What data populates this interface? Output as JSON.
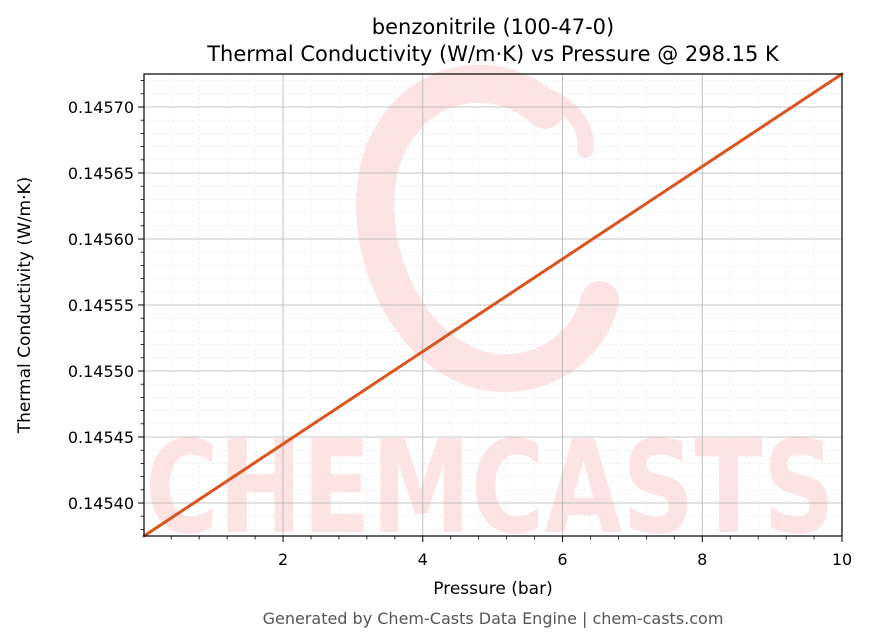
{
  "chart_data": {
    "type": "line",
    "title": "benzonitrile (100-47-0)",
    "subtitle": "Thermal Conductivity (W/m·K) vs Pressure @ 298.15 K",
    "xlabel": "Pressure (bar)",
    "ylabel": "Thermal Conductivity (W/m·K)",
    "xlim": [
      0.01,
      10
    ],
    "ylim": [
      0.145375,
      0.145725
    ],
    "x_ticks": [
      2,
      4,
      6,
      8,
      10
    ],
    "x_tick_labels": [
      "2",
      "4",
      "6",
      "8",
      "10"
    ],
    "y_ticks": [
      0.1454,
      0.14545,
      0.1455,
      0.14555,
      0.1456,
      0.14565,
      0.1457
    ],
    "y_tick_labels": [
      "0.14540",
      "0.14545",
      "0.14550",
      "0.14555",
      "0.14560",
      "0.14565",
      "0.14570"
    ],
    "grid": true,
    "series": [
      {
        "x": [
          0.01,
          10
        ],
        "y": [
          0.145375,
          0.145725
        ],
        "color": "#d9541e"
      }
    ]
  },
  "watermark": {
    "text": "CHEMCASTS",
    "color": "#fde3e3"
  },
  "footer": {
    "text": "Generated by Chem-Casts Data Engine | chem-casts.com"
  }
}
